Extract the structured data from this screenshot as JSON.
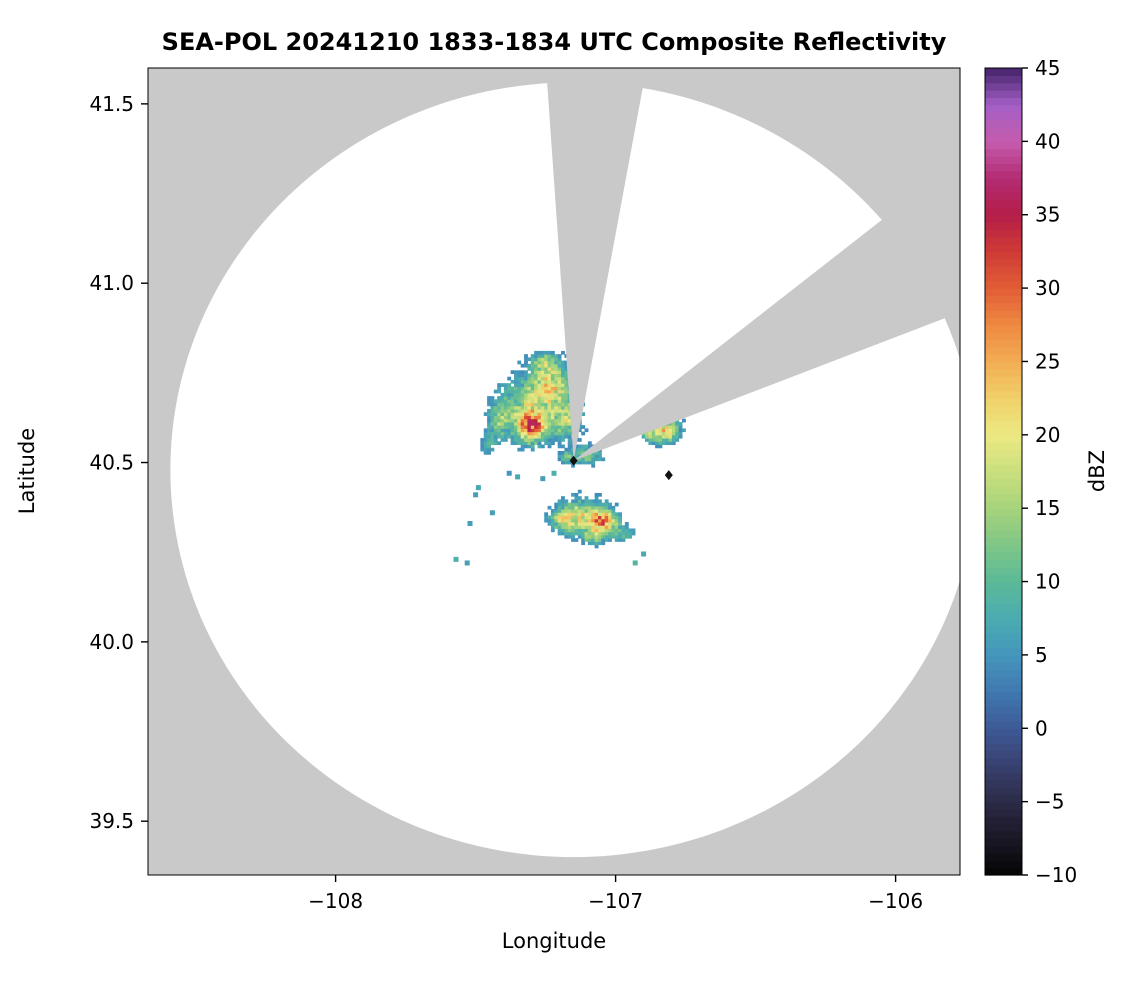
{
  "chart_data": {
    "type": "heatmap",
    "title": "SEA-POL 20241210 1833-1834 UTC Composite Reflectivity",
    "x_axis": {
      "label": "Longitude",
      "ticks": [
        {
          "v": -108,
          "label": "−108"
        },
        {
          "v": -107,
          "label": "−107"
        },
        {
          "v": -106,
          "label": "−106"
        }
      ]
    },
    "y_axis": {
      "label": "Latitude",
      "ticks": [
        {
          "v": 39.5,
          "label": "39.5"
        },
        {
          "v": 40.0,
          "label": "40.0"
        },
        {
          "v": 40.5,
          "label": "40.5"
        },
        {
          "v": 41.0,
          "label": "41.0"
        },
        {
          "v": 41.5,
          "label": "41.5"
        }
      ]
    },
    "xlim": [
      -108.67,
      -105.77
    ],
    "ylim": [
      39.35,
      41.6
    ],
    "grid": false,
    "legend": "colorbar-right",
    "background_color": "#c9c9c9",
    "coverage_fill": "#ffffff",
    "colorbar": {
      "label": "dBZ",
      "min": -10,
      "max": 45,
      "ticks": [
        {
          "v": -10,
          "label": "−10"
        },
        {
          "v": -5,
          "label": "−5"
        },
        {
          "v": 0,
          "label": "0"
        },
        {
          "v": 5,
          "label": "5"
        },
        {
          "v": 10,
          "label": "10"
        },
        {
          "v": 15,
          "label": "15"
        },
        {
          "v": 20,
          "label": "20"
        },
        {
          "v": 25,
          "label": "25"
        },
        {
          "v": 30,
          "label": "30"
        },
        {
          "v": 35,
          "label": "35"
        },
        {
          "v": 40,
          "label": "40"
        },
        {
          "v": 45,
          "label": "45"
        }
      ],
      "stops": [
        [
          -10,
          "#050505"
        ],
        [
          -8,
          "#16141f"
        ],
        [
          -6,
          "#252239"
        ],
        [
          -4,
          "#323457"
        ],
        [
          -2,
          "#394578"
        ],
        [
          0,
          "#3d5a96"
        ],
        [
          2.5,
          "#3f78b0"
        ],
        [
          5,
          "#4496bc"
        ],
        [
          7.5,
          "#4aacb0"
        ],
        [
          10,
          "#5bb998"
        ],
        [
          12.5,
          "#7ec687"
        ],
        [
          15,
          "#a6d37b"
        ],
        [
          17.5,
          "#cadf7d"
        ],
        [
          20,
          "#ece983"
        ],
        [
          22.5,
          "#f0d068"
        ],
        [
          25,
          "#f2ad53"
        ],
        [
          27.5,
          "#ee8941"
        ],
        [
          30,
          "#e25d36"
        ],
        [
          32.5,
          "#cf3a35"
        ],
        [
          35,
          "#b41e49"
        ],
        [
          37.5,
          "#b32b72"
        ],
        [
          40,
          "#c55cae"
        ],
        [
          42.5,
          "#a25fc6"
        ],
        [
          45,
          "#44236a"
        ]
      ]
    },
    "coverage": {
      "lon": -107.15,
      "lat": 40.48,
      "radius_lon": 1.44,
      "radius_lat": 1.08
    },
    "blocked_sectors_origin": {
      "lon": -107.15,
      "lat": 40.505
    },
    "blocked_sectors": [
      {
        "az_start_deg": -4,
        "az_end_deg": 10.5
      },
      {
        "az_start_deg": 52,
        "az_end_deg": 69
      }
    ],
    "radar_markers": [
      {
        "lon": -107.15,
        "lat": 40.505
      },
      {
        "lon": -106.81,
        "lat": 40.465
      }
    ],
    "echo_field": {
      "units": "dBZ",
      "dlon": 0.012,
      "dlat": 0.009,
      "lon_min": -107.62,
      "lon_max": -106.68,
      "lat_min": 40.14,
      "lat_max": 40.86,
      "seed": 20241210,
      "threshold": 4,
      "cap": 36.5,
      "cores": [
        [
          -107.3,
          40.655,
          0.115,
          0.09,
          16
        ],
        [
          -107.22,
          40.72,
          0.07,
          0.055,
          14
        ],
        [
          -107.25,
          40.78,
          0.045,
          0.03,
          12
        ],
        [
          -107.3,
          40.6,
          0.05,
          0.038,
          24
        ],
        [
          -107.42,
          40.62,
          0.04,
          0.05,
          10
        ],
        [
          -107.45,
          40.55,
          0.025,
          0.03,
          8
        ],
        [
          -107.17,
          40.62,
          0.05,
          0.05,
          13
        ],
        [
          -106.82,
          40.59,
          0.05,
          0.035,
          22
        ],
        [
          -106.88,
          40.58,
          0.03,
          0.025,
          12
        ],
        [
          -107.12,
          40.35,
          0.09,
          0.05,
          17
        ],
        [
          -107.04,
          40.335,
          0.05,
          0.033,
          22
        ],
        [
          -107.19,
          40.34,
          0.04,
          0.028,
          13
        ],
        [
          -106.97,
          40.3,
          0.04,
          0.022,
          10
        ],
        [
          -107.08,
          40.29,
          0.04,
          0.02,
          10
        ],
        [
          -107.1,
          40.52,
          0.05,
          0.027,
          14
        ],
        [
          -107.17,
          40.515,
          0.03,
          0.022,
          10
        ]
      ]
    },
    "specks": [
      [
        -107.49,
        40.43,
        7
      ],
      [
        -107.5,
        40.41,
        6
      ],
      [
        -107.57,
        40.23,
        8
      ],
      [
        -107.53,
        40.22,
        6
      ],
      [
        -107.35,
        40.46,
        7
      ],
      [
        -107.22,
        40.47,
        8
      ],
      [
        -107.26,
        40.455,
        6
      ],
      [
        -107.44,
        40.36,
        6
      ],
      [
        -106.93,
        40.22,
        9
      ],
      [
        -106.9,
        40.245,
        7
      ],
      [
        -107.38,
        40.47,
        5
      ],
      [
        -107.52,
        40.33,
        6
      ]
    ]
  }
}
